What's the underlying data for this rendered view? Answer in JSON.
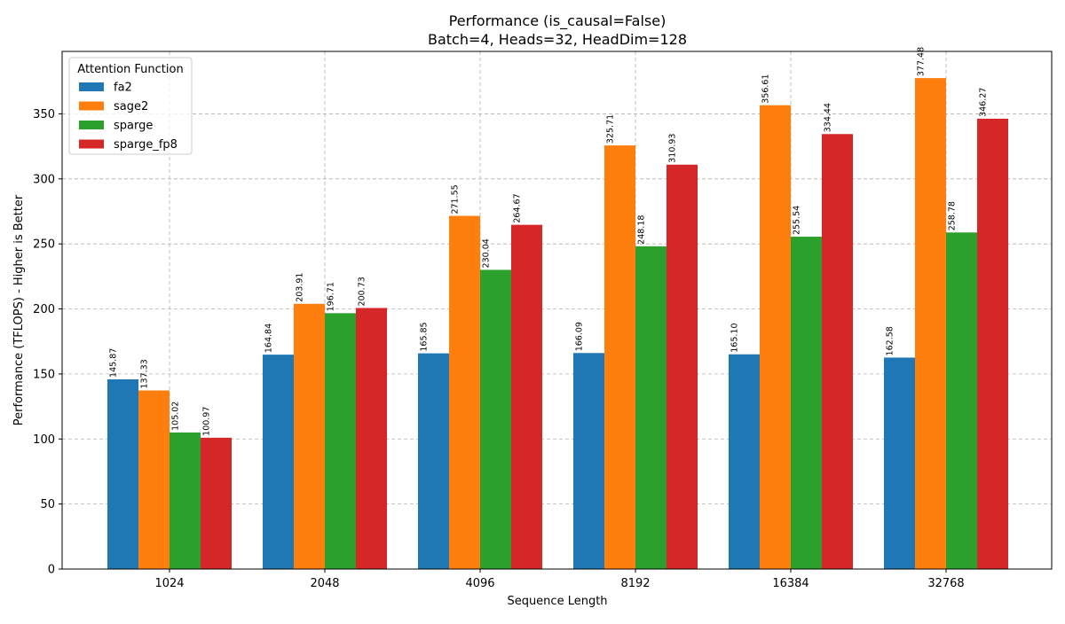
{
  "chart_data": {
    "type": "bar",
    "title": "Performance (is_causal=False)",
    "subtitle": "Batch=4, Heads=32, HeadDim=128",
    "xlabel": "Sequence Length",
    "ylabel": "Performance (TFLOPS) - Higher is Better",
    "categories": [
      "1024",
      "2048",
      "4096",
      "8192",
      "16384",
      "32768"
    ],
    "ylim": [
      0,
      398
    ],
    "yticks": [
      0,
      50,
      100,
      150,
      200,
      250,
      300,
      350
    ],
    "grid": true,
    "legend": {
      "title": "Attention Function",
      "placement": "top-left"
    },
    "series": [
      {
        "name": "fa2",
        "color": "#1f77b4",
        "values": [
          145.87,
          164.84,
          165.85,
          166.09,
          165.1,
          162.58
        ],
        "labels": [
          "145.87",
          "164.84",
          "165.85",
          "166.09",
          "165.10",
          "162.58"
        ]
      },
      {
        "name": "sage2",
        "color": "#ff7f0e",
        "values": [
          137.33,
          203.91,
          271.55,
          325.71,
          356.61,
          377.48
        ],
        "labels": [
          "137.33",
          "203.91",
          "271.55",
          "325.71",
          "356.61",
          "377.48"
        ]
      },
      {
        "name": "sparge",
        "color": "#2ca02c",
        "values": [
          105.02,
          196.71,
          230.04,
          248.18,
          255.54,
          258.78
        ],
        "labels": [
          "105.02",
          "196.71",
          "230.04",
          "248.18",
          "255.54",
          "258.78"
        ]
      },
      {
        "name": "sparge_fp8",
        "color": "#d62728",
        "values": [
          100.97,
          200.73,
          264.67,
          310.93,
          334.44,
          346.27
        ],
        "labels": [
          "100.97",
          "200.73",
          "264.67",
          "310.93",
          "334.44",
          "346.27"
        ]
      }
    ]
  }
}
